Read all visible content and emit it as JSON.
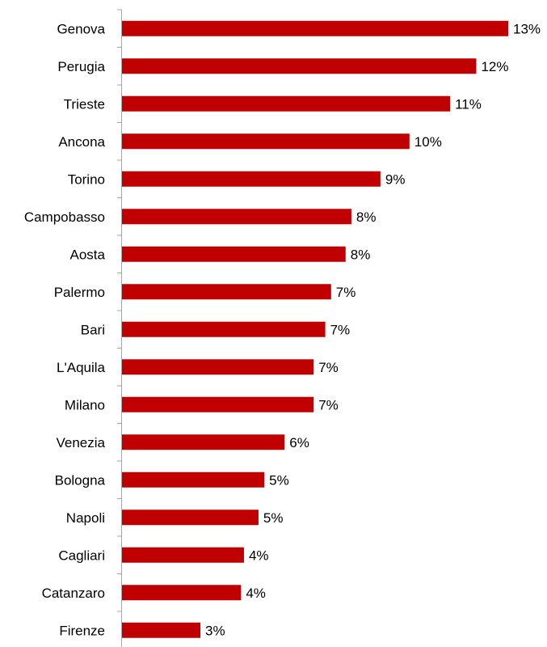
{
  "chart_data": {
    "type": "bar",
    "orientation": "horizontal",
    "categories": [
      "Genova",
      "Perugia",
      "Trieste",
      "Ancona",
      "Torino",
      "Campobasso",
      "Aosta",
      "Palermo",
      "Bari",
      "L'Aquila",
      "Milano",
      "Venezia",
      "Bologna",
      "Napoli",
      "Cagliari",
      "Catanzaro",
      "Firenze"
    ],
    "values": [
      13.3,
      12.2,
      11.3,
      9.9,
      8.9,
      7.9,
      7.7,
      7.2,
      7.0,
      6.6,
      6.6,
      5.6,
      4.9,
      4.7,
      4.2,
      4.1,
      2.7
    ],
    "data_labels": [
      "13%",
      "12%",
      "11%",
      "10%",
      "9%",
      "8%",
      "8%",
      "7%",
      "7%",
      "7%",
      "7%",
      "6%",
      "5%",
      "5%",
      "4%",
      "4%",
      "3%"
    ],
    "title": "",
    "xlabel": "",
    "ylabel": "",
    "xlim": [
      0,
      13.3
    ],
    "grid": false,
    "legend": "none",
    "bar_color": "#c00000",
    "axis_color": "#a6a6a6"
  }
}
